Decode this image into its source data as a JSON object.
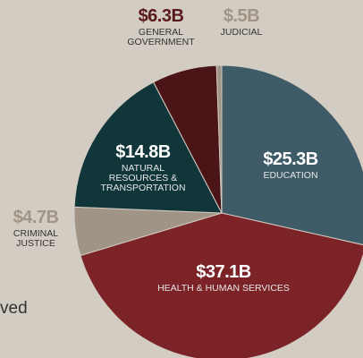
{
  "chart_data": {
    "type": "pie",
    "categories": [
      "EDUCATION",
      "HEALTH & HUMAN SERVICES",
      "CRIMINAL JUSTICE",
      "NATURAL RESOURCES & TRANSPORTATION",
      "GENERAL GOVERNMENT",
      "JUDICIAL"
    ],
    "values": [
      25.3,
      37.1,
      4.7,
      14.8,
      6.3,
      0.5
    ],
    "value_labels": [
      "$25.3B",
      "$37.1B",
      "$4.7B",
      "$14.8B",
      "$6.3B",
      "$.5B"
    ],
    "colors": [
      "#3e5b67",
      "#7b2327",
      "#9f9486",
      "#10363a",
      "#4b1517",
      "#9f9486"
    ]
  },
  "caption": "ved"
}
